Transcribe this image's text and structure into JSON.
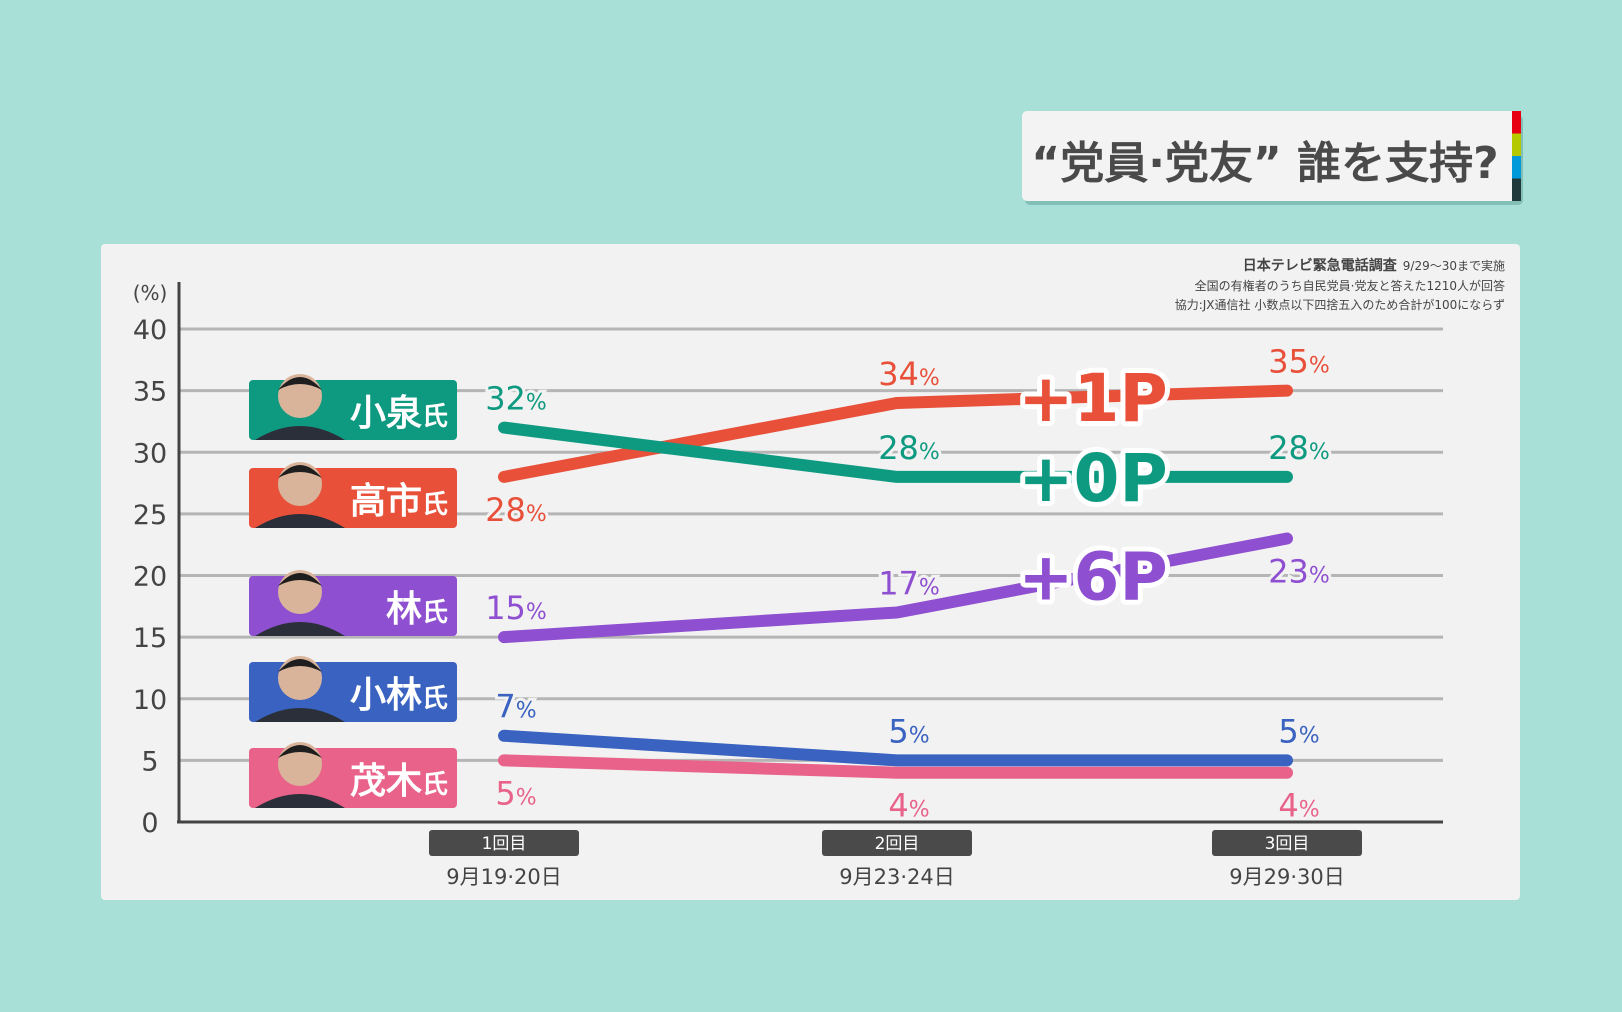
{
  "title": "“党員·党友” 誰を支持?",
  "title_stripe_colors": [
    "#e60012",
    "#b5c900",
    "#0099d9",
    "#22393b"
  ],
  "notes": {
    "line1_bold": "日本テレビ緊急電話調査",
    "line1_rest": "9/29～30まで実施",
    "line2": "全国の有権者のうち自民党員·党友と答えた1210人が回答",
    "line3": "協力:JX通信社 小数点以下四捨五入のため合計が100にならず"
  },
  "chart_data": {
    "type": "line",
    "title": "“党員·党友” 誰を支持?",
    "ylabel": "(%)",
    "ylim": [
      0,
      40
    ],
    "yticks": [
      0,
      5,
      10,
      15,
      20,
      25,
      30,
      35,
      40
    ],
    "grid": true,
    "categories": [
      {
        "round": "1回目",
        "date": "9月19·20日"
      },
      {
        "round": "2回目",
        "date": "9月23·24日"
      },
      {
        "round": "3回目",
        "date": "9月29·30日"
      }
    ],
    "series": [
      {
        "name": "小泉",
        "suffix": "氏",
        "color": "#0e9a80",
        "values": [
          32,
          28,
          28
        ],
        "change": "+0P",
        "label_pos": [
          "above",
          "above",
          "above"
        ]
      },
      {
        "name": "高市",
        "suffix": "氏",
        "color": "#e8503a",
        "values": [
          28,
          34,
          35
        ],
        "change": "+1P",
        "label_pos": [
          "below",
          "above",
          "above"
        ]
      },
      {
        "name": "林",
        "suffix": "氏",
        "color": "#8e4fd0",
        "values": [
          15,
          17,
          23
        ],
        "change": "+6P",
        "label_pos": [
          "above",
          "above",
          "below"
        ]
      },
      {
        "name": "小林",
        "suffix": "氏",
        "color": "#3a62c0",
        "values": [
          7,
          5,
          5
        ],
        "label_pos": [
          "above",
          "above",
          "above"
        ]
      },
      {
        "name": "茂木",
        "suffix": "氏",
        "color": "#e8628a",
        "values": [
          5,
          4,
          4
        ],
        "label_pos": [
          "below",
          "below",
          "below"
        ]
      }
    ],
    "value_suffix": "%"
  }
}
